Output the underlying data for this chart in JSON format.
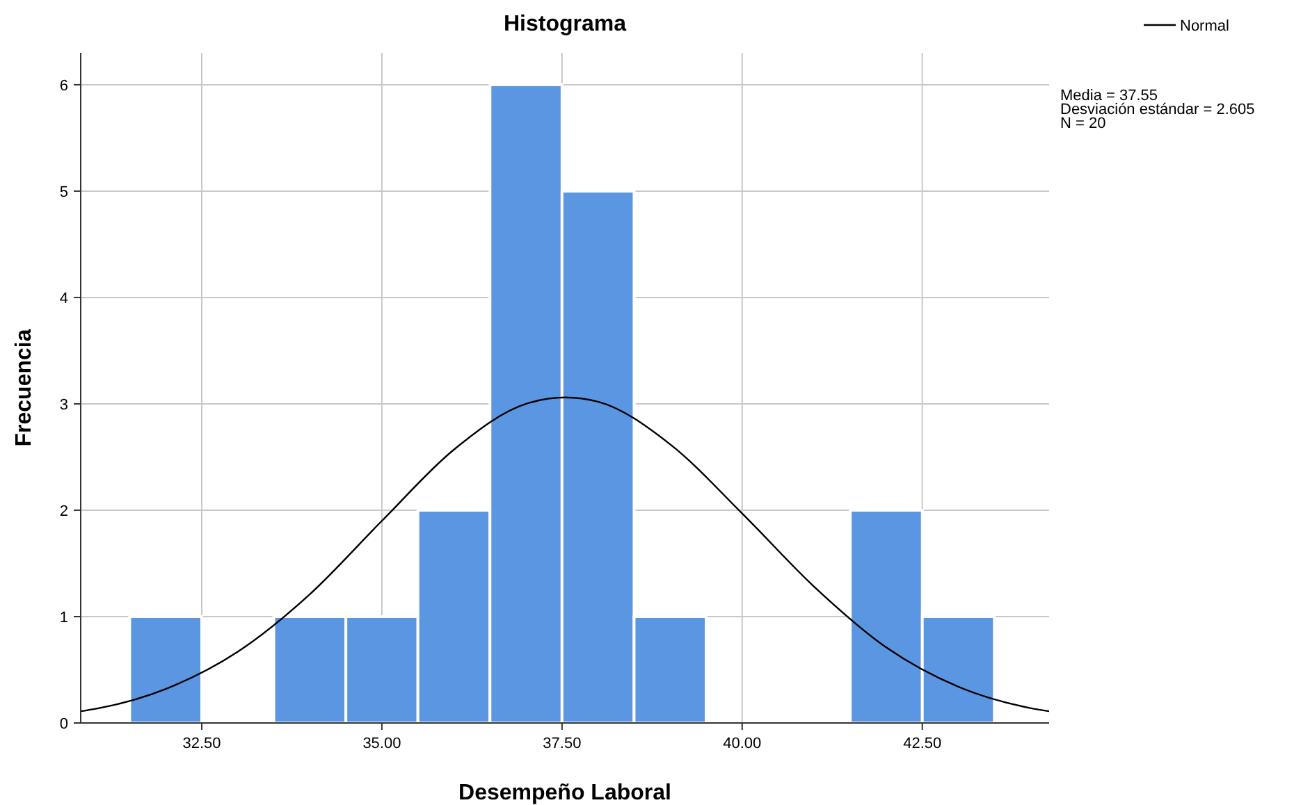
{
  "chart_data": {
    "type": "histogram",
    "title": "Histograma",
    "xlabel": "Desempeño Laboral",
    "ylabel": "Frecuencia",
    "bins": [
      31.5,
      32.5,
      33.5,
      34.5,
      35.5,
      36.5,
      37.5,
      38.5,
      39.5,
      40.5,
      41.5,
      42.5,
      43.5
    ],
    "values": [
      1,
      0,
      1,
      1,
      2,
      6,
      5,
      1,
      0,
      0,
      2,
      1
    ],
    "color": "#5b96e3",
    "series": [
      {
        "name": "Normal",
        "type": "line",
        "color": "#000000",
        "x": [
          30.82,
          31,
          32,
          33,
          34,
          35,
          36,
          37,
          37.55,
          38,
          39,
          40,
          41,
          42,
          43,
          44,
          44.26
        ],
        "values": [
          0.11,
          0.13,
          0.32,
          0.67,
          1.21,
          1.9,
          2.57,
          3.0,
          3.06,
          3.02,
          2.62,
          1.97,
          1.28,
          0.71,
          0.34,
          0.14,
          0.11
        ]
      }
    ],
    "xlim": [
      30.82,
      44.26
    ],
    "ylim": [
      0,
      6.3
    ],
    "xticks": [
      {
        "value": 32.5,
        "label": "32.50"
      },
      {
        "value": 35,
        "label": "35.00"
      },
      {
        "value": 37.5,
        "label": "37.50"
      },
      {
        "value": 40,
        "label": "40.00"
      },
      {
        "value": 42.5,
        "label": "42.50"
      }
    ],
    "yticks": [
      0,
      1,
      2,
      3,
      4,
      5,
      6
    ],
    "grid": true,
    "legend": "top right",
    "line_style": "solid",
    "marker": "none",
    "annotations": [
      "Media = 37.55",
      "Desviación estándar = 2.605",
      "N = 20"
    ]
  }
}
